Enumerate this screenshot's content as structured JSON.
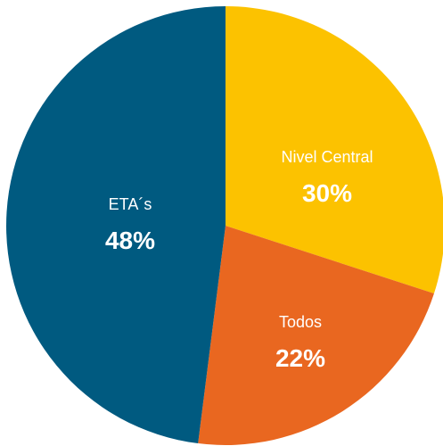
{
  "chart_data": {
    "type": "pie",
    "slices": [
      {
        "label": "Nivel Central",
        "value": 30,
        "display": "30%",
        "color": "#fcc200"
      },
      {
        "label": "Todos",
        "value": 22,
        "display": "22%",
        "color": "#e96720"
      },
      {
        "label": "ETA´s",
        "value": 48,
        "display": "48%",
        "color": "#005a80"
      }
    ],
    "start_angle": "12 o'clock",
    "direction": "clockwise",
    "legend": "none",
    "labels": "inside slices"
  }
}
